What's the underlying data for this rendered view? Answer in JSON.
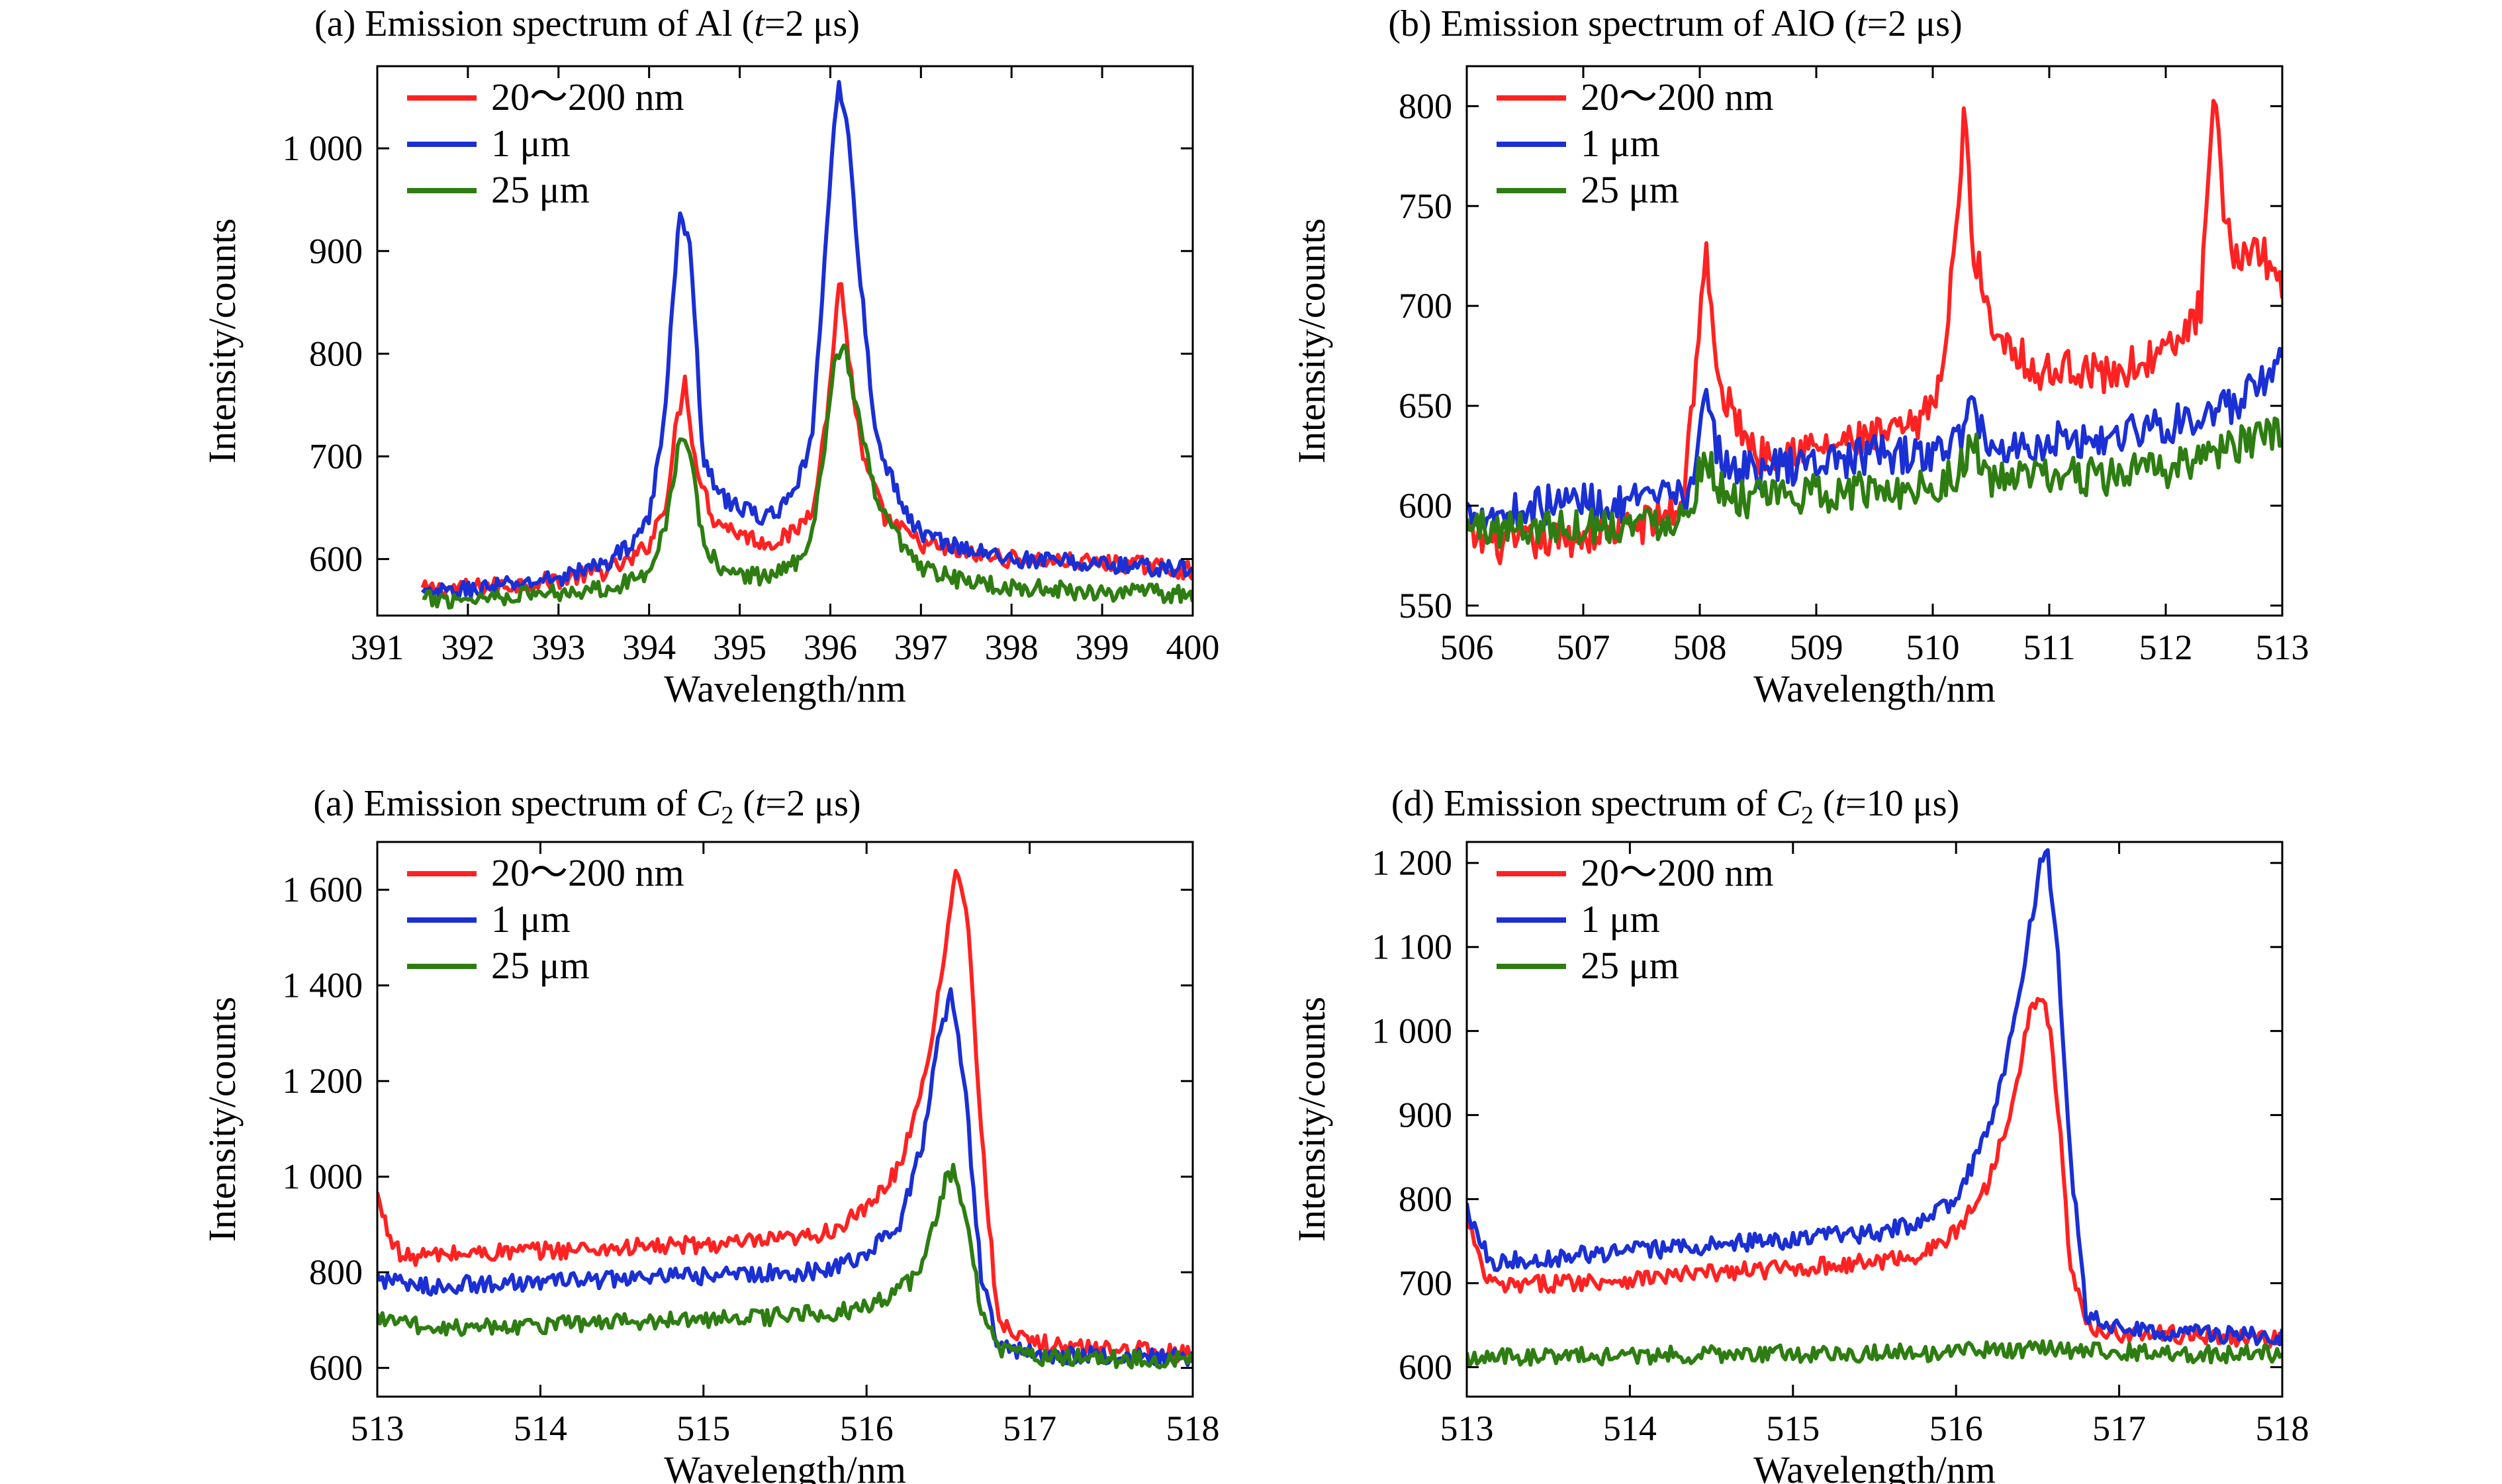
{
  "colors": {
    "red": "#ff2222",
    "blue": "#1a2fd4",
    "green": "#2e7d12"
  },
  "legend_labels": [
    "20～200 nm",
    "1 μm",
    "25 μm"
  ],
  "chart_data": [
    {
      "id": "a",
      "type": "line",
      "title": "(a) Emission spectrum of Al (t=2 μs)",
      "title_parts": {
        "prefix": "(a) Emission spectrum of Al (",
        "t": "t",
        "suffix": "=2 μs)"
      },
      "xlabel": "Wavelength/nm",
      "ylabel": "Intensity/counts",
      "xlim": [
        391,
        400
      ],
      "ylim": [
        545,
        1080
      ],
      "xticks": [
        391,
        392,
        393,
        394,
        395,
        396,
        397,
        398,
        399,
        400
      ],
      "yticks": [
        600,
        700,
        800,
        900,
        1000
      ],
      "ytick_labels": [
        "600",
        "700",
        "800",
        "900",
        "1 000"
      ],
      "grid": false,
      "legend_position": "top-left",
      "series": [
        {
          "name": "20～200 nm",
          "color": "#ff2222",
          "x": [
            391.5,
            392.0,
            392.5,
            393.0,
            393.5,
            393.8,
            394.0,
            394.2,
            394.3,
            394.4,
            394.5,
            394.7,
            395.0,
            395.3,
            395.6,
            395.8,
            395.95,
            396.05,
            396.1,
            396.2,
            396.35,
            396.6,
            397.0,
            397.5,
            398.0,
            398.5,
            399.0,
            399.5,
            400.0
          ],
          "y": [
            570,
            572,
            575,
            580,
            588,
            598,
            615,
            660,
            730,
            775,
            700,
            640,
            625,
            615,
            625,
            650,
            730,
            820,
            880,
            800,
            700,
            640,
            615,
            605,
            600,
            598,
            596,
            594,
            588
          ]
        },
        {
          "name": "1 μm",
          "color": "#1a2fd4",
          "x": [
            391.5,
            392.0,
            392.5,
            393.0,
            393.5,
            393.8,
            394.0,
            394.15,
            394.3,
            394.35,
            394.45,
            394.6,
            394.8,
            395.0,
            395.3,
            395.6,
            395.8,
            395.95,
            396.05,
            396.1,
            396.2,
            396.3,
            396.5,
            396.8,
            397.0,
            397.5,
            398.0,
            398.5,
            399.0,
            399.5,
            400.0
          ],
          "y": [
            565,
            570,
            575,
            582,
            595,
            615,
            640,
            720,
            900,
            940,
            900,
            700,
            660,
            650,
            640,
            660,
            720,
            900,
            1040,
            1065,
            1010,
            900,
            720,
            650,
            625,
            610,
            600,
            598,
            595,
            592,
            590
          ]
        },
        {
          "name": "25 μm",
          "color": "#2e7d12",
          "x": [
            391.5,
            392.0,
            392.5,
            393.0,
            393.5,
            393.8,
            394.0,
            394.2,
            394.35,
            394.45,
            394.6,
            394.8,
            395.0,
            395.3,
            395.6,
            395.8,
            395.95,
            396.05,
            396.15,
            396.3,
            396.5,
            396.8,
            397.0,
            397.5,
            398.0,
            398.5,
            399.0,
            399.5,
            400.0
          ],
          "y": [
            560,
            562,
            565,
            568,
            572,
            578,
            590,
            640,
            725,
            700,
            615,
            590,
            585,
            583,
            595,
            625,
            720,
            795,
            810,
            740,
            660,
            610,
            590,
            578,
            573,
            570,
            568,
            567,
            565
          ]
        }
      ]
    },
    {
      "id": "b",
      "type": "line",
      "title": "(b) Emission spectrum of AlO (t=2 μs)",
      "title_parts": {
        "prefix": "(b) Emission spectrum of AlO (",
        "t": "t",
        "suffix": "=2 μs)"
      },
      "xlabel": "Wavelength/nm",
      "ylabel": "Intensity/counts",
      "xlim": [
        506,
        513
      ],
      "ylim": [
        545,
        820
      ],
      "xticks": [
        506,
        507,
        508,
        509,
        510,
        511,
        512,
        513
      ],
      "yticks": [
        550,
        600,
        650,
        700,
        750,
        800
      ],
      "ytick_labels": [
        "550",
        "600",
        "650",
        "700",
        "750",
        "800"
      ],
      "grid": false,
      "legend_position": "top-left",
      "series": [
        {
          "name": "20～200 nm",
          "color": "#ff2222",
          "x": [
            506.0,
            506.3,
            506.6,
            507.0,
            507.3,
            507.6,
            507.85,
            507.95,
            508.05,
            508.15,
            508.3,
            508.5,
            508.8,
            509.0,
            509.3,
            509.6,
            509.9,
            510.1,
            510.2,
            510.27,
            510.35,
            510.5,
            510.7,
            510.9,
            511.2,
            511.5,
            511.8,
            512.1,
            512.3,
            512.42,
            512.5,
            512.6,
            512.8,
            513.0
          ],
          "y": [
            585,
            580,
            582,
            585,
            588,
            592,
            600,
            660,
            730,
            660,
            645,
            625,
            630,
            628,
            632,
            635,
            640,
            670,
            740,
            795,
            730,
            690,
            680,
            665,
            670,
            665,
            672,
            680,
            700,
            808,
            740,
            725,
            730,
            710
          ]
        },
        {
          "name": "1 μm",
          "color": "#1a2fd4",
          "x": [
            506.0,
            506.3,
            506.6,
            507.0,
            507.3,
            507.6,
            507.9,
            508.05,
            508.2,
            508.5,
            508.8,
            509.0,
            509.3,
            509.6,
            509.9,
            510.2,
            510.35,
            510.5,
            510.8,
            511.1,
            511.4,
            511.7,
            512.0,
            512.3,
            512.6,
            512.8,
            513.0
          ],
          "y": [
            598,
            596,
            600,
            603,
            600,
            602,
            606,
            650,
            620,
            618,
            620,
            622,
            624,
            626,
            624,
            632,
            650,
            628,
            630,
            634,
            632,
            638,
            640,
            645,
            650,
            660,
            670
          ]
        },
        {
          "name": "25 μm",
          "color": "#2e7d12",
          "x": [
            506.0,
            506.3,
            506.6,
            507.0,
            507.3,
            507.6,
            507.9,
            508.05,
            508.2,
            508.5,
            508.8,
            509.0,
            509.3,
            509.6,
            509.9,
            510.2,
            510.35,
            510.5,
            510.8,
            511.1,
            511.4,
            511.7,
            512.0,
            512.3,
            512.6,
            512.8,
            513.0
          ],
          "y": [
            590,
            588,
            590,
            590,
            591,
            592,
            596,
            628,
            605,
            603,
            605,
            606,
            607,
            608,
            609,
            615,
            630,
            612,
            614,
            615,
            614,
            616,
            618,
            625,
            630,
            633,
            635
          ]
        }
      ]
    },
    {
      "id": "c",
      "type": "line",
      "title": "(a) Emission spectrum of C2 (t=2 μs)",
      "title_parts": {
        "prefix": "(a) Emission spectrum of ",
        "species": "C",
        "sub": "2",
        "mid": " (",
        "t": "t",
        "suffix": "=2 μs)"
      },
      "xlabel": "Wavelength/nm",
      "ylabel": "Intensity/counts",
      "xlim": [
        513,
        518
      ],
      "ylim": [
        540,
        1700
      ],
      "xticks": [
        513,
        514,
        515,
        516,
        517,
        518
      ],
      "yticks": [
        600,
        800,
        1000,
        1200,
        1400,
        1600
      ],
      "ytick_labels": [
        "600",
        "800",
        "1 000",
        "1 200",
        "1 400",
        "1 600"
      ],
      "grid": false,
      "legend_position": "top-left",
      "series": [
        {
          "name": "20～200 nm",
          "color": "#ff2222",
          "x": [
            513.0,
            513.05,
            513.15,
            513.3,
            513.6,
            514.0,
            514.4,
            514.8,
            515.2,
            515.6,
            515.8,
            516.0,
            516.2,
            516.35,
            516.45,
            516.52,
            516.56,
            516.62,
            516.7,
            516.8,
            516.9,
            517.2,
            517.5,
            518.0
          ],
          "y": [
            960,
            900,
            830,
            835,
            840,
            845,
            850,
            855,
            860,
            870,
            890,
            930,
            1020,
            1200,
            1400,
            1580,
            1650,
            1550,
            1100,
            720,
            660,
            645,
            640,
            630
          ]
        },
        {
          "name": "1 μm",
          "color": "#1a2fd4",
          "x": [
            513.0,
            513.2,
            513.6,
            514.0,
            514.4,
            514.8,
            515.2,
            515.6,
            515.8,
            516.0,
            516.2,
            516.35,
            516.45,
            516.52,
            516.6,
            516.7,
            516.8,
            517.0,
            517.5,
            518.0
          ],
          "y": [
            790,
            770,
            775,
            780,
            785,
            790,
            795,
            800,
            810,
            840,
            900,
            1080,
            1300,
            1390,
            1200,
            800,
            650,
            630,
            625,
            620
          ]
        },
        {
          "name": "25 μm",
          "color": "#2e7d12",
          "x": [
            513.0,
            513.3,
            513.6,
            514.0,
            514.4,
            514.8,
            515.2,
            515.6,
            515.9,
            516.1,
            516.3,
            516.4,
            516.48,
            516.54,
            516.62,
            516.7,
            516.8,
            517.0,
            517.5,
            518.0
          ],
          "y": [
            705,
            685,
            688,
            690,
            695,
            700,
            705,
            710,
            720,
            740,
            790,
            880,
            990,
            1020,
            900,
            720,
            640,
            625,
            620,
            615
          ]
        }
      ]
    },
    {
      "id": "d",
      "type": "line",
      "title": "(d) Emission spectrum of C2 (t=10 μs)",
      "title_parts": {
        "prefix": "(d) Emission spectrum of ",
        "species": "C",
        "sub": "2",
        "mid": " (",
        "t": "t",
        "suffix": "=10 μs)"
      },
      "xlabel": "Wavelength/nm",
      "ylabel": "Intensity/counts",
      "xlim": [
        513,
        518
      ],
      "ylim": [
        565,
        1225
      ],
      "xticks": [
        513,
        514,
        515,
        516,
        517,
        518
      ],
      "yticks": [
        600,
        700,
        800,
        900,
        1000,
        1100,
        1200
      ],
      "ytick_labels": [
        "600",
        "700",
        "800",
        "900",
        "1 000",
        "1 100",
        "1 200"
      ],
      "grid": false,
      "legend_position": "top-left",
      "series": [
        {
          "name": "20～200 nm",
          "color": "#ff2222",
          "x": [
            513.0,
            513.1,
            513.2,
            513.5,
            514.0,
            514.5,
            515.0,
            515.5,
            515.8,
            516.0,
            516.2,
            516.35,
            516.45,
            516.5,
            516.58,
            516.65,
            516.7,
            516.8,
            517.0,
            517.5,
            518.0
          ],
          "y": [
            780,
            710,
            695,
            700,
            705,
            712,
            718,
            725,
            735,
            760,
            820,
            920,
            1020,
            1040,
            1010,
            850,
            720,
            650,
            640,
            638,
            632
          ]
        },
        {
          "name": "1 μm",
          "color": "#1a2fd4",
          "x": [
            513.0,
            513.15,
            513.5,
            514.0,
            514.5,
            515.0,
            515.5,
            515.8,
            516.0,
            516.2,
            516.35,
            516.45,
            516.52,
            516.56,
            516.62,
            516.7,
            516.8,
            517.0,
            517.5,
            518.0
          ],
          "y": [
            790,
            725,
            730,
            738,
            745,
            752,
            760,
            772,
            800,
            880,
            1000,
            1120,
            1200,
            1215,
            1100,
            850,
            660,
            645,
            640,
            635
          ]
        },
        {
          "name": "25 μm",
          "color": "#2e7d12",
          "x": [
            513.0,
            513.5,
            514.0,
            514.5,
            515.0,
            515.5,
            516.0,
            516.5,
            517.0,
            517.5,
            518.0
          ],
          "y": [
            612,
            613,
            614,
            615,
            616,
            617,
            618,
            622,
            618,
            616,
            615
          ]
        }
      ]
    }
  ]
}
